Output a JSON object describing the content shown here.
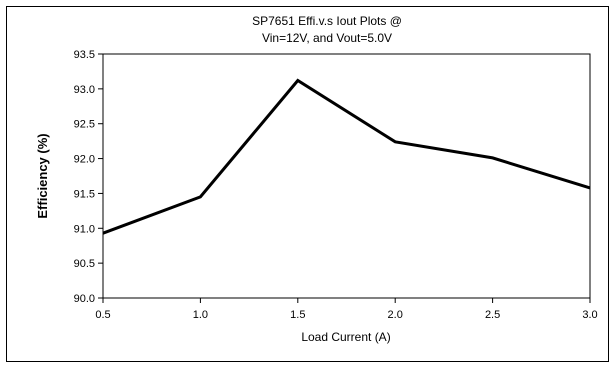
{
  "chart_data": {
    "type": "line",
    "title_line1": "SP7651 Effi.v.s Iout Plots @",
    "title_line2": "Vin=12V, and Vout=5.0V",
    "xlabel": "Load Current (A)",
    "ylabel": "Efficiency (%)",
    "xlim": [
      0.5,
      3.0
    ],
    "ylim": [
      90.0,
      93.5
    ],
    "x_ticks": [
      "0.5",
      "1.0",
      "1.5",
      "2.0",
      "2.5",
      "3.0"
    ],
    "y_ticks": [
      "93.5",
      "93.0",
      "92.5",
      "92.0",
      "91.5",
      "91.0",
      "90.5",
      "90.0"
    ],
    "grid": false,
    "legend": "none",
    "line_color": "#000000",
    "series": [
      {
        "x": [
          0.5,
          1.0,
          1.5,
          2.0,
          2.5,
          3.0
        ],
        "y": [
          90.93,
          91.45,
          93.12,
          92.24,
          92.01,
          91.58
        ]
      }
    ]
  }
}
